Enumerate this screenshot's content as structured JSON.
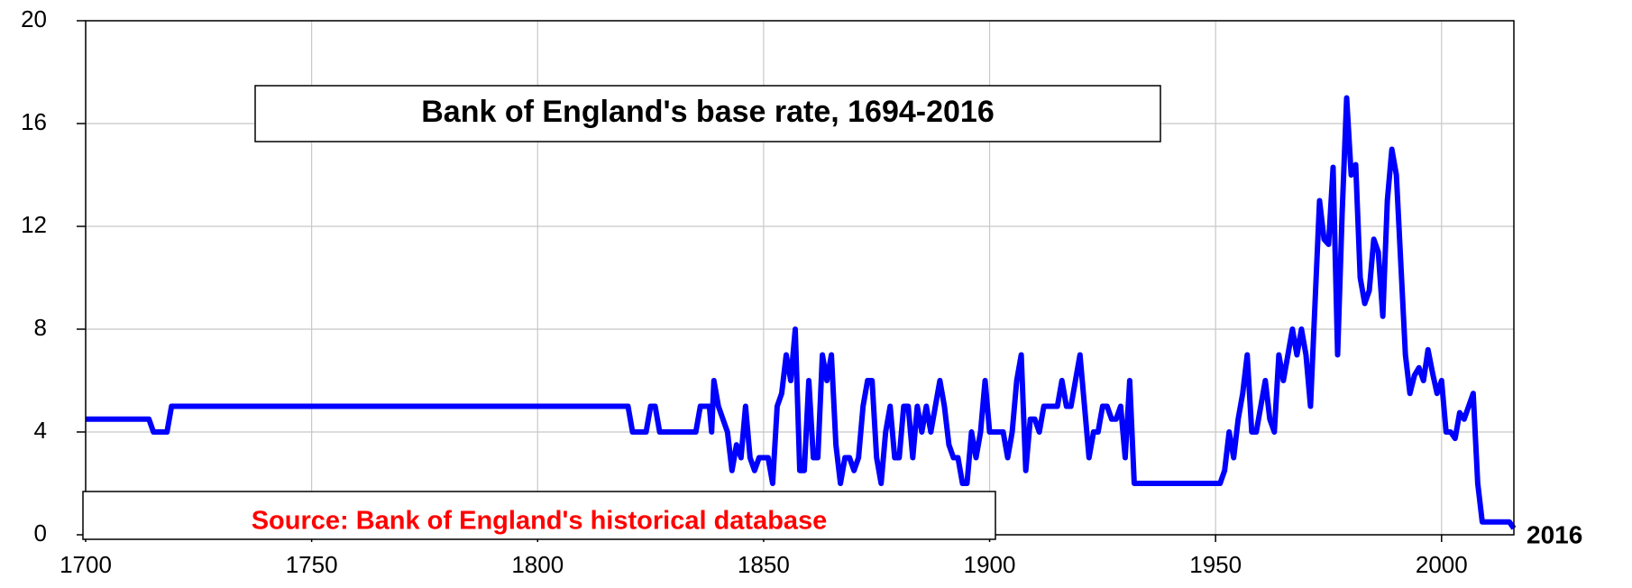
{
  "chart_data": {
    "type": "line",
    "title": "Bank of England's base rate, 1694-2016",
    "source": "Source: Bank of England's historical database",
    "end_label": "2016",
    "color": "#0000ff",
    "grid": true,
    "xlim": [
      1700,
      2016
    ],
    "ylim": [
      0,
      20
    ],
    "xticks": [
      1700,
      1750,
      1800,
      1850,
      1900,
      1950,
      2000
    ],
    "yticks": [
      0,
      4,
      8,
      12,
      16,
      20
    ],
    "x": [
      1700,
      1714,
      1715,
      1718,
      1719,
      1820,
      1821,
      1824,
      1825,
      1826,
      1827,
      1835,
      1836,
      1838,
      1838.5,
      1839,
      1840,
      1842,
      1843,
      1844,
      1845,
      1846,
      1847,
      1848,
      1849,
      1851,
      1852,
      1853,
      1854,
      1855,
      1856,
      1857,
      1858,
      1859,
      1860,
      1861,
      1862,
      1863,
      1864,
      1865,
      1866,
      1867,
      1868,
      1869,
      1870,
      1871,
      1872,
      1873,
      1874,
      1875,
      1876,
      1877,
      1878,
      1879,
      1880,
      1881,
      1882,
      1883,
      1884,
      1885,
      1886,
      1887,
      1888,
      1889,
      1890,
      1891,
      1892,
      1893,
      1894,
      1895,
      1896,
      1897,
      1898,
      1899,
      1900,
      1903,
      1904,
      1905,
      1906,
      1907,
      1908,
      1909,
      1910,
      1911,
      1912,
      1915,
      1916,
      1917,
      1918,
      1919,
      1920,
      1921,
      1922,
      1923,
      1924,
      1925,
      1926,
      1927,
      1928,
      1929,
      1930,
      1931,
      1932,
      1951,
      1952,
      1953,
      1954,
      1955,
      1956,
      1957,
      1958,
      1959,
      1960,
      1961,
      1962,
      1963,
      1964,
      1965,
      1966,
      1967,
      1968,
      1969,
      1970,
      1971,
      1972,
      1973,
      1974,
      1975,
      1976,
      1977,
      1978,
      1979,
      1980,
      1981,
      1982,
      1983,
      1984,
      1985,
      1986,
      1987,
      1988,
      1989,
      1990,
      1991,
      1992,
      1993,
      1994,
      1995,
      1996,
      1997,
      1998,
      1999,
      2000,
      2001,
      2002,
      2003,
      2004,
      2005,
      2006,
      2007,
      2008,
      2009,
      2015,
      2016
    ],
    "values": [
      4.5,
      4.5,
      4,
      4,
      5,
      5,
      4,
      4,
      5,
      5,
      4,
      4,
      5,
      5,
      4,
      6,
      5,
      4,
      2.5,
      3.5,
      3,
      5,
      3,
      2.5,
      3,
      3,
      2,
      5,
      5.5,
      7,
      6,
      8,
      2.5,
      2.5,
      6,
      3,
      3,
      7,
      6,
      7,
      3.5,
      2,
      3,
      3,
      2.5,
      3,
      5,
      6,
      6,
      3,
      2,
      4,
      5,
      3,
      3,
      5,
      5,
      3,
      5,
      4,
      5,
      4,
      5,
      6,
      5,
      3.5,
      3,
      3,
      2,
      2,
      4,
      3,
      4,
      6,
      4,
      4,
      3,
      4,
      6,
      7,
      2.5,
      4.5,
      4.5,
      4,
      5,
      5,
      6,
      5,
      5,
      6,
      7,
      5,
      3,
      4,
      4,
      5,
      5,
      4.5,
      4.5,
      5,
      3,
      6,
      2,
      2,
      2.5,
      4,
      3,
      4.5,
      5.5,
      7,
      4,
      4,
      5,
      6,
      4.5,
      4,
      7,
      6,
      7,
      8,
      7,
      8,
      7,
      5,
      9,
      13,
      11.5,
      11.3,
      14.3,
      7,
      12.5,
      17,
      14,
      14.4,
      10,
      9,
      9.5,
      11.5,
      11,
      8.5,
      13,
      15,
      14,
      10.5,
      7,
      5.5,
      6.2,
      6.5,
      6,
      7.2,
      6.3,
      5.5,
      6,
      4,
      4,
      3.75,
      4.75,
      4.5,
      5,
      5.5,
      2,
      0.5,
      0.5,
      0.25
    ]
  }
}
